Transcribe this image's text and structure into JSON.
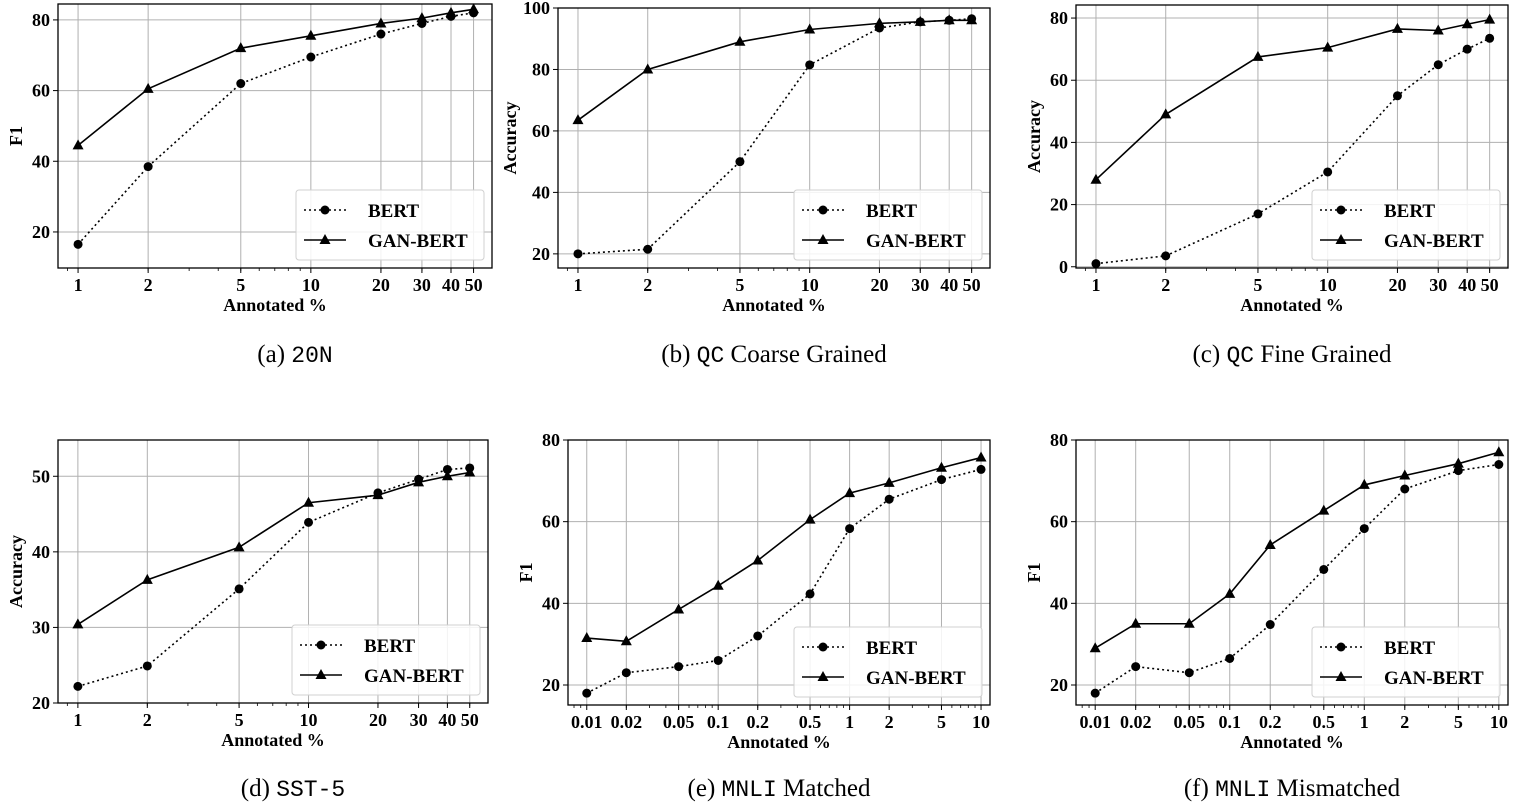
{
  "chart_data": [
    {
      "type": "line",
      "caption_prefix": "(a) ",
      "caption_dataset": "20N",
      "caption_suffix": "",
      "xlabel": "Annotated %",
      "ylabel": "F1",
      "xscale": "log",
      "xlim": [
        0.82,
        60
      ],
      "ylim": [
        9.8,
        84.5
      ],
      "xticks": [
        1,
        2,
        5,
        10,
        20,
        30,
        40,
        50
      ],
      "xtick_labels": [
        "1",
        "2",
        "5",
        "10",
        "20",
        "30",
        "40",
        "50"
      ],
      "yticks": [
        20,
        40,
        60,
        80
      ],
      "ytick_labels": [
        "20",
        "40",
        "60",
        "80"
      ],
      "x": [
        1,
        2,
        5,
        10,
        20,
        30,
        40,
        50
      ],
      "series": [
        {
          "name": "BERT",
          "style": "dotted",
          "marker": "circle",
          "values": [
            16.5,
            38.5,
            62,
            69.5,
            76,
            79,
            81,
            82
          ]
        },
        {
          "name": "GAN-BERT",
          "style": "solid",
          "marker": "triangle",
          "values": [
            44.5,
            60.5,
            72,
            75.5,
            79,
            80.5,
            82,
            83
          ]
        }
      ],
      "legend": "lower-right",
      "grid": true
    },
    {
      "type": "line",
      "caption_prefix": "(b) ",
      "caption_dataset": "QC",
      "caption_suffix": " Coarse Grained",
      "xlabel": "Annotated %",
      "ylabel": "Accuracy",
      "xscale": "log",
      "xlim": [
        0.82,
        60
      ],
      "ylim": [
        15.4,
        100
      ],
      "xticks": [
        1,
        2,
        5,
        10,
        20,
        30,
        40,
        50
      ],
      "xtick_labels": [
        "1",
        "2",
        "5",
        "10",
        "20",
        "30",
        "40",
        "50"
      ],
      "yticks": [
        20,
        40,
        60,
        80,
        100
      ],
      "ytick_labels": [
        "20",
        "40",
        "60",
        "80",
        "100"
      ],
      "x": [
        1,
        2,
        5,
        10,
        20,
        30,
        40,
        50
      ],
      "series": [
        {
          "name": "BERT",
          "style": "dotted",
          "marker": "circle",
          "values": [
            20,
            21.5,
            50,
            81.5,
            93.5,
            95.5,
            96,
            96.5
          ]
        },
        {
          "name": "GAN-BERT",
          "style": "solid",
          "marker": "triangle",
          "values": [
            63.5,
            80,
            89,
            93,
            95,
            95.5,
            96,
            96
          ]
        }
      ],
      "legend": "lower-right",
      "grid": true
    },
    {
      "type": "line",
      "caption_prefix": "(c) ",
      "caption_dataset": "QC",
      "caption_suffix": " Fine Grained",
      "xlabel": "Annotated %",
      "ylabel": "Accuracy",
      "xscale": "log",
      "xlim": [
        0.82,
        60
      ],
      "ylim": [
        -0.4,
        84.2
      ],
      "xticks": [
        1,
        2,
        5,
        10,
        20,
        30,
        40,
        50
      ],
      "xtick_labels": [
        "1",
        "2",
        "5",
        "10",
        "20",
        "30",
        "40",
        "50"
      ],
      "yticks": [
        0,
        20,
        40,
        60,
        80
      ],
      "ytick_labels": [
        "0",
        "20",
        "40",
        "60",
        "80"
      ],
      "x": [
        1,
        2,
        5,
        10,
        20,
        30,
        40,
        50
      ],
      "series": [
        {
          "name": "BERT",
          "style": "dotted",
          "marker": "circle",
          "values": [
            1,
            3.5,
            17,
            30.5,
            55,
            65,
            70,
            73.5
          ]
        },
        {
          "name": "GAN-BERT",
          "style": "solid",
          "marker": "triangle",
          "values": [
            28,
            49,
            67.5,
            70.5,
            76.5,
            76,
            78,
            79.5
          ]
        }
      ],
      "legend": "lower-right",
      "grid": true
    },
    {
      "type": "line",
      "caption_prefix": "(d) ",
      "caption_dataset": "SST-5",
      "caption_suffix": "",
      "xlabel": "Annotated %",
      "ylabel": "Accuracy",
      "xscale": "log",
      "xlim": [
        0.82,
        60
      ],
      "ylim": [
        20,
        54.8
      ],
      "xticks": [
        1,
        2,
        5,
        10,
        20,
        30,
        40,
        50
      ],
      "xtick_labels": [
        "1",
        "2",
        "5",
        "10",
        "20",
        "30",
        "40",
        "50"
      ],
      "yticks": [
        20,
        30,
        40,
        50
      ],
      "ytick_labels": [
        "20",
        "30",
        "40",
        "50"
      ],
      "x": [
        1,
        2,
        5,
        10,
        20,
        30,
        40,
        50
      ],
      "series": [
        {
          "name": "BERT",
          "style": "dotted",
          "marker": "circle",
          "values": [
            22.2,
            24.9,
            35.1,
            43.9,
            47.8,
            49.6,
            50.9,
            51.1
          ]
        },
        {
          "name": "GAN-BERT",
          "style": "solid",
          "marker": "triangle",
          "values": [
            30.4,
            36.3,
            40.6,
            46.5,
            47.5,
            49.2,
            50,
            50.5
          ]
        }
      ],
      "legend": "lower-right",
      "grid": true
    },
    {
      "type": "line",
      "caption_prefix": "(e) ",
      "caption_dataset": "MNLI",
      "caption_suffix": " Matched",
      "xlabel": "Annotated %",
      "ylabel": "F1",
      "xscale": "log",
      "xlim": [
        0.0072,
        11.7
      ],
      "ylim": [
        15.1,
        80
      ],
      "xticks": [
        0.01,
        0.02,
        0.05,
        0.1,
        0.2,
        0.5,
        1,
        2,
        5,
        10
      ],
      "xtick_labels": [
        "0.01",
        "0.02",
        "0.05",
        "0.1",
        "0.2",
        "0.5",
        "1",
        "2",
        "5",
        "10"
      ],
      "yticks": [
        20,
        40,
        60,
        80
      ],
      "ytick_labels": [
        "20",
        "40",
        "60",
        "80"
      ],
      "x": [
        0.01,
        0.02,
        0.05,
        0.1,
        0.2,
        0.5,
        1,
        2,
        5,
        10
      ],
      "series": [
        {
          "name": "BERT",
          "style": "dotted",
          "marker": "circle",
          "values": [
            18,
            23,
            24.5,
            26,
            32,
            42.3,
            58.3,
            65.5,
            70.3,
            72.8
          ]
        },
        {
          "name": "GAN-BERT",
          "style": "solid",
          "marker": "triangle",
          "values": [
            31.5,
            30.7,
            38.5,
            44.3,
            50.5,
            60.5,
            67,
            69.5,
            73.2,
            75.7
          ]
        }
      ],
      "legend": "lower-right",
      "grid": true
    },
    {
      "type": "line",
      "caption_prefix": "(f) ",
      "caption_dataset": "MNLI",
      "caption_suffix": " Mismatched",
      "xlabel": "Annotated %",
      "ylabel": "F1",
      "xscale": "log",
      "xlim": [
        0.0072,
        11.7
      ],
      "ylim": [
        15.1,
        80
      ],
      "xticks": [
        0.01,
        0.02,
        0.05,
        0.1,
        0.2,
        0.5,
        1,
        2,
        5,
        10
      ],
      "xtick_labels": [
        "0.01",
        "0.02",
        "0.05",
        "0.1",
        "0.2",
        "0.5",
        "1",
        "2",
        "5",
        "10"
      ],
      "yticks": [
        20,
        40,
        60,
        80
      ],
      "ytick_labels": [
        "20",
        "40",
        "60",
        "80"
      ],
      "x": [
        0.01,
        0.02,
        0.05,
        0.1,
        0.2,
        0.5,
        1,
        2,
        5,
        10
      ],
      "series": [
        {
          "name": "BERT",
          "style": "dotted",
          "marker": "circle",
          "values": [
            18,
            24.5,
            23,
            26.5,
            34.8,
            48.3,
            58.3,
            68,
            72.5,
            74
          ]
        },
        {
          "name": "GAN-BERT",
          "style": "solid",
          "marker": "triangle",
          "values": [
            29,
            35,
            35,
            42.3,
            54.3,
            62.7,
            69,
            71.3,
            74.2,
            77
          ]
        }
      ],
      "legend": "lower-right",
      "grid": true
    }
  ]
}
